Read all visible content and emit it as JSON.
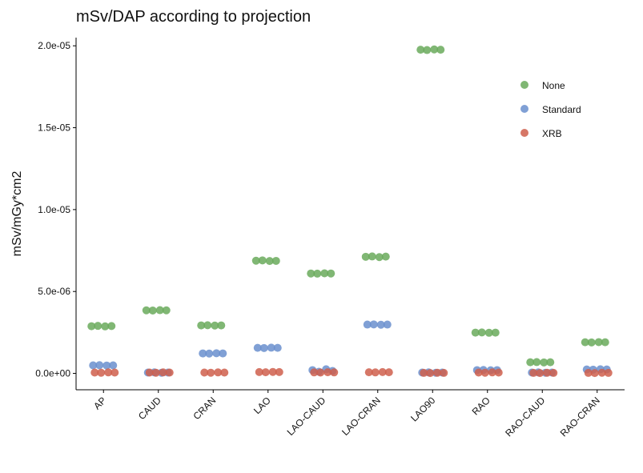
{
  "chart_data": {
    "type": "strip",
    "title": "mSv/DAP according to projection",
    "y_label": "mSv/mGy*cm2",
    "categories": [
      "AP",
      "CAUD",
      "CRAN",
      "LAO",
      "LAO-CAUD",
      "LAO-CRAN",
      "LAO90",
      "RAO",
      "RAO-CAUD",
      "RAO-CRAN"
    ],
    "series": [
      {
        "name": "None",
        "color": "#6aaa5c",
        "values": [
          [
            2.88e-06,
            2.9e-06,
            2.87e-06,
            2.89e-06
          ],
          [
            3.85e-06,
            3.84e-06,
            3.86e-06,
            3.85e-06
          ],
          [
            2.93e-06,
            2.94e-06,
            2.92e-06,
            2.93e-06
          ],
          [
            6.88e-06,
            6.9e-06,
            6.86e-06,
            6.87e-06
          ],
          [
            6.1e-06,
            6.09e-06,
            6.11e-06,
            6.1e-06
          ],
          [
            7.12e-06,
            7.14e-06,
            7.1e-06,
            7.13e-06
          ],
          [
            1.976e-05,
            1.974e-05,
            1.978e-05,
            1.976e-05
          ],
          [
            2.49e-06,
            2.5e-06,
            2.48e-06,
            2.49e-06
          ],
          [
            6.8e-07,
            6.9e-07,
            6.7e-07,
            6.8e-07
          ],
          [
            1.9e-06,
            1.89e-06,
            1.91e-06,
            1.9e-06
          ]
        ]
      },
      {
        "name": "Standard",
        "color": "#6a8fce",
        "values": [
          [
            4.9e-07,
            5e-07,
            4.8e-07,
            4.9e-07
          ],
          [
            5e-08,
            6e-08,
            4e-08,
            5e-08
          ],
          [
            1.22e-06,
            1.21e-06,
            1.23e-06,
            1.22e-06
          ],
          [
            1.56e-06,
            1.55e-06,
            1.57e-06,
            1.56e-06
          ],
          [
            2e-07,
            1e-07,
            2.5e-07,
            1.5e-07
          ],
          [
            2.98e-06,
            2.99e-06,
            2.97e-06,
            2.98e-06
          ],
          [
            5e-08,
            6e-08,
            4e-08,
            5e-08
          ],
          [
            2e-07,
            2.1e-07,
            1.9e-07,
            2e-07
          ],
          [
            5e-08,
            6e-08,
            4e-08,
            5e-08
          ],
          [
            2.4e-07,
            2.3e-07,
            2.5e-07,
            2.4e-07
          ]
        ]
      },
      {
        "name": "XRB",
        "color": "#cf5f4c",
        "values": [
          [
            5e-08,
            4e-08,
            6e-08,
            5e-08
          ],
          [
            5e-08,
            4e-08,
            6e-08,
            5e-08
          ],
          [
            5e-08,
            4e-08,
            6e-08,
            5e-08
          ],
          [
            8e-08,
            7e-08,
            9e-08,
            8e-08
          ],
          [
            6e-08,
            5e-08,
            7e-08,
            6e-08
          ],
          [
            7e-08,
            6e-08,
            8e-08,
            7e-08
          ],
          [
            3e-08,
            2e-08,
            4e-08,
            3e-08
          ],
          [
            5e-08,
            4e-08,
            6e-08,
            5e-08
          ],
          [
            3e-08,
            2e-08,
            4e-08,
            3e-08
          ],
          [
            3e-08,
            2e-08,
            4e-08,
            3e-08
          ]
        ]
      }
    ],
    "ylim": [
      -1e-06,
      2.05e-05
    ],
    "yticks": [
      {
        "value": 0,
        "label": "0.0e+00"
      },
      {
        "value": 5e-06,
        "label": "5.0e-06"
      },
      {
        "value": 1e-05,
        "label": "1.0e-05"
      },
      {
        "value": 1.5e-05,
        "label": "1.5e-05"
      },
      {
        "value": 2e-05,
        "label": "2.0e-05"
      }
    ],
    "legend": "top-right",
    "grid": false
  }
}
